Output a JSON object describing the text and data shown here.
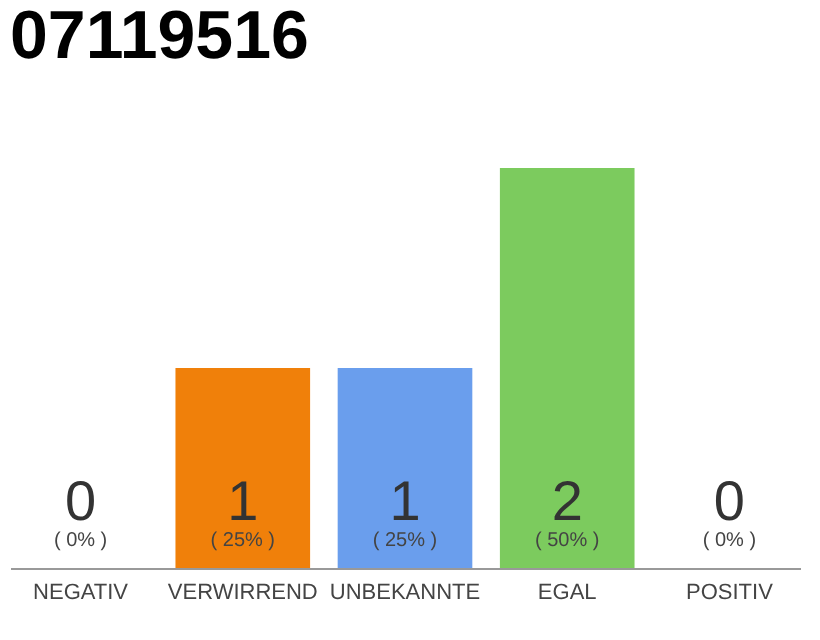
{
  "chart_data": {
    "type": "bar",
    "title": "07119516",
    "categories": [
      "NEGATIV",
      "VERWIRREND",
      "UNBEKANNTE",
      "EGAL",
      "POSITIV"
    ],
    "values": [
      0,
      1,
      1,
      2,
      0
    ],
    "colors": [
      "#f0f0f0",
      "#f0800a",
      "#6a9eed",
      "#7ccb5e",
      "#f0f0f0"
    ],
    "tick_labels": "x",
    "value_labels": [
      "0",
      "1",
      "1",
      "2",
      "0"
    ],
    "annotations": [
      "( 0% )",
      "( 25% )",
      "( 25% )",
      "( 50% )",
      "( 0% )"
    ]
  }
}
